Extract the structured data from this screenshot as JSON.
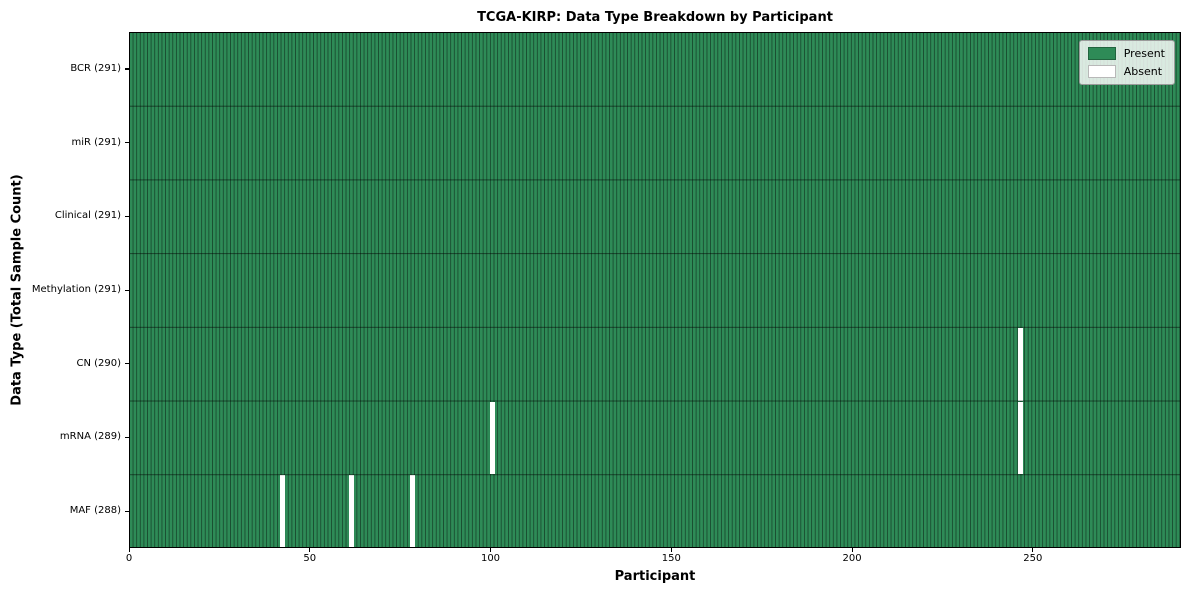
{
  "chart_data": {
    "type": "heatmap",
    "title": "TCGA-KIRP: Data Type Breakdown by Participant",
    "xlabel": "Participant",
    "ylabel": "Data Type (Total Sample Count)",
    "x_ticks": [
      0,
      50,
      100,
      150,
      200,
      250
    ],
    "xlim": [
      0,
      291
    ],
    "n_participants": 291,
    "n_data_types": 7,
    "rows": [
      {
        "label": "BCR (291)",
        "data_type": "BCR",
        "present_count": 291,
        "absent_participants": []
      },
      {
        "label": "miR (291)",
        "data_type": "miR",
        "present_count": 291,
        "absent_participants": []
      },
      {
        "label": "Clinical (291)",
        "data_type": "Clinical",
        "present_count": 291,
        "absent_participants": []
      },
      {
        "label": "Methylation (291)",
        "data_type": "Methylation",
        "present_count": 291,
        "absent_participants": []
      },
      {
        "label": "CN (290)",
        "data_type": "CN",
        "present_count": 290,
        "absent_participants": [
          246
        ]
      },
      {
        "label": "mRNA (289)",
        "data_type": "mRNA",
        "present_count": 289,
        "absent_participants": [
          100,
          246
        ]
      },
      {
        "label": "MAF (288)",
        "data_type": "MAF",
        "present_count": 288,
        "absent_participants": [
          42,
          61,
          78
        ]
      }
    ],
    "legend": [
      {
        "label": "Present",
        "color": "#2e8b57"
      },
      {
        "label": "Absent",
        "color": "#ffffff"
      }
    ],
    "legend_position": "upper right",
    "grid": false,
    "colors": {
      "present": "#2e8b57",
      "absent": "#ffffff",
      "cell_edge": "rgba(0,0,0,0.45)",
      "row_line": "rgba(0,0,0,0.5)",
      "spine": "#000000",
      "background": "#ffffff"
    }
  }
}
